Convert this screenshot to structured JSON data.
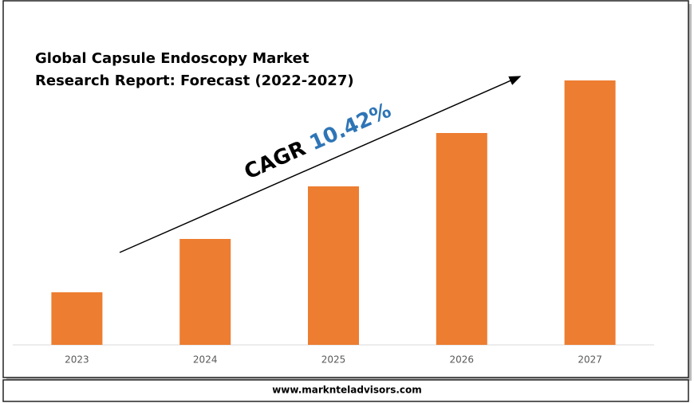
{
  "chart_data": {
    "type": "bar",
    "title": [
      "Global Capsule Endoscopy Market",
      "Research Report: Forecast (2022-2027)"
    ],
    "annotations": [
      "CAGR",
      "10.42%"
    ],
    "annotation_color": "#2e75b6",
    "categories": [
      "2023",
      "2024",
      "2025",
      "2026",
      "2027"
    ],
    "values": [
      66,
      133,
      199,
      266,
      332
    ],
    "color": "#ed7d31",
    "ylim": [
      0,
      333
    ],
    "footer": "www.marknteladvisors.com"
  }
}
